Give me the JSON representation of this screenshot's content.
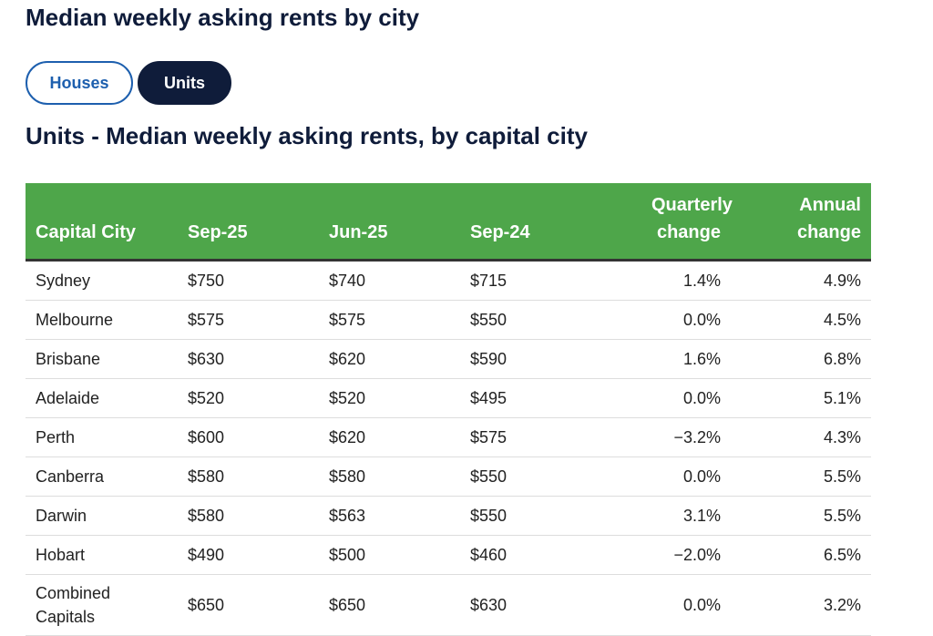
{
  "header": {
    "title": "Median weekly asking rents by city"
  },
  "tabs": [
    "Houses",
    "Units"
  ],
  "table": {
    "title": "Units - Median weekly asking rents, by capital city",
    "headers": [
      "Capital City",
      "Sep-25",
      "Jun-25",
      "Sep-24",
      "Quarterly change",
      "Annual change"
    ],
    "rows": [
      [
        "Sydney",
        "$750",
        "$740",
        "$715",
        "1.4%",
        "4.9%"
      ],
      [
        "Melbourne",
        "$575",
        "$575",
        "$550",
        "0.0%",
        "4.5%"
      ],
      [
        "Brisbane",
        "$630",
        "$620",
        "$590",
        "1.6%",
        "6.8%"
      ],
      [
        "Adelaide",
        "$520",
        "$520",
        "$495",
        "0.0%",
        "5.1%"
      ],
      [
        "Perth",
        "$600",
        "$620",
        "$575",
        "−3.2%",
        "4.3%"
      ],
      [
        "Canberra",
        "$580",
        "$580",
        "$550",
        "0.0%",
        "5.5%"
      ],
      [
        "Darwin",
        "$580",
        "$563",
        "$550",
        "3.1%",
        "5.5%"
      ],
      [
        "Hobart",
        "$490",
        "$500",
        "$460",
        "−2.0%",
        "6.5%"
      ],
      [
        "Combined Capitals",
        "$650",
        "$650",
        "$630",
        "0.0%",
        "3.2%"
      ]
    ]
  }
}
